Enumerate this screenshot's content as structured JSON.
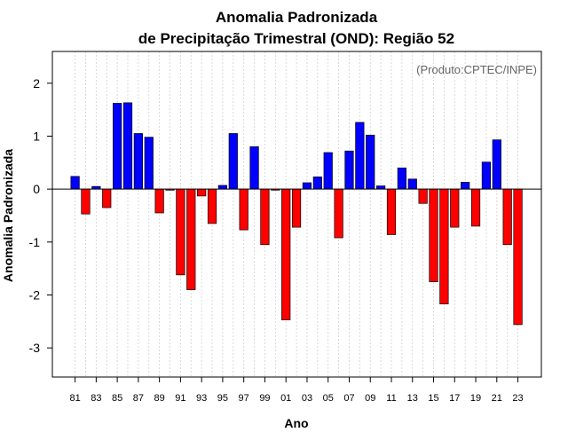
{
  "chart_data": {
    "type": "bar",
    "title_line1": "Anomalia Padronizada",
    "title_line2": "de Precipitação Trimestral (OND): Região 52",
    "credit": "(Produto:CPTEC/INPE)",
    "xlabel": "Ano",
    "ylabel": "Anomalia Padronizada",
    "ylim": [
      -3.55,
      2.6
    ],
    "yticks": [
      "-3",
      "-2",
      "-1",
      "0",
      "1",
      "2"
    ],
    "yticks_values": [
      -3,
      -2,
      -1,
      0,
      1,
      2
    ],
    "grid": true,
    "colors": {
      "positive": "#0000ff",
      "negative": "#ff0000"
    },
    "categories": [
      "81",
      "82",
      "83",
      "84",
      "85",
      "86",
      "87",
      "88",
      "89",
      "90",
      "91",
      "92",
      "93",
      "94",
      "95",
      "96",
      "97",
      "98",
      "99",
      "00",
      "01",
      "02",
      "03",
      "04",
      "05",
      "06",
      "07",
      "08",
      "09",
      "10",
      "11",
      "12",
      "13",
      "14",
      "15",
      "16",
      "17",
      "18",
      "19",
      "20",
      "21",
      "22",
      "23"
    ],
    "xtick_labels": [
      "81",
      "83",
      "85",
      "87",
      "89",
      "91",
      "93",
      "95",
      "97",
      "99",
      "01",
      "03",
      "05",
      "07",
      "09",
      "11",
      "13",
      "15",
      "17",
      "19",
      "21",
      "23"
    ],
    "values": [
      0.24,
      -0.47,
      0.05,
      -0.35,
      1.62,
      1.63,
      1.05,
      0.98,
      -0.45,
      -0.02,
      -1.62,
      -1.9,
      -0.13,
      -0.65,
      0.07,
      1.05,
      -0.77,
      0.8,
      -1.05,
      -0.02,
      -2.47,
      -0.72,
      0.12,
      0.23,
      0.69,
      -0.92,
      0.72,
      1.26,
      1.02,
      0.06,
      -0.86,
      0.4,
      0.19,
      -0.27,
      -1.75,
      -2.17,
      -0.72,
      0.13,
      -0.7,
      0.51,
      0.93,
      -1.05,
      -2.56
    ]
  }
}
